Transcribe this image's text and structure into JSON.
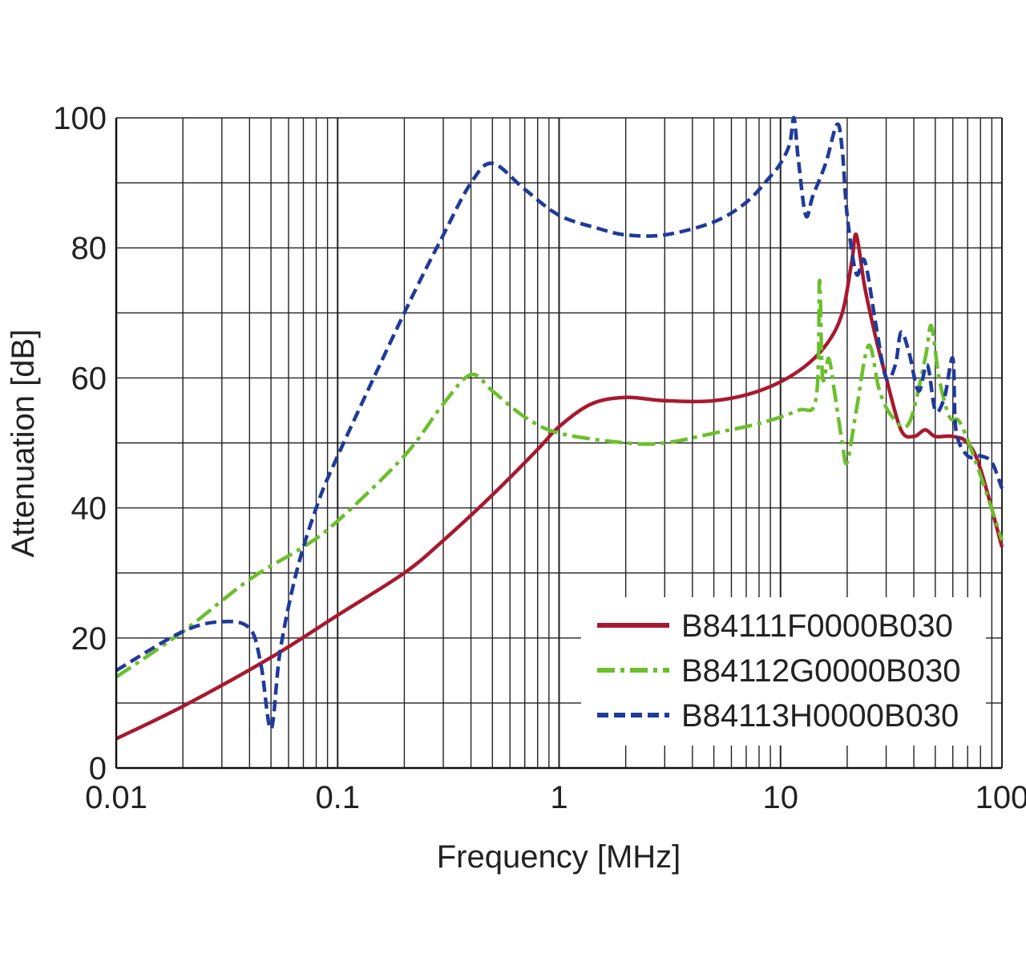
{
  "chart_data": {
    "type": "line",
    "xlabel": "Frequency [MHz]",
    "ylabel": "Attenuation [dB]",
    "x_scale": "log",
    "xlim": [
      0.01,
      100
    ],
    "ylim": [
      0,
      100
    ],
    "x_ticks": [
      "0.01",
      "0.1",
      "1",
      "10",
      "100"
    ],
    "y_ticks": [
      "0",
      "20",
      "40",
      "60",
      "80",
      "100"
    ],
    "grid": true,
    "legend_position": "bottom-right",
    "series": [
      {
        "name": "B84111F0000B030",
        "color": "#a8192e",
        "dash": "solid",
        "points": [
          [
            0.01,
            4.5
          ],
          [
            0.02,
            9.5
          ],
          [
            0.05,
            17
          ],
          [
            0.1,
            23.5
          ],
          [
            0.2,
            30
          ],
          [
            0.3,
            35
          ],
          [
            0.5,
            42
          ],
          [
            0.8,
            49
          ],
          [
            1.0,
            52.5
          ],
          [
            1.4,
            56
          ],
          [
            2.0,
            57
          ],
          [
            3.0,
            56.5
          ],
          [
            5.0,
            56.5
          ],
          [
            8.0,
            58
          ],
          [
            12.0,
            61
          ],
          [
            16.0,
            65
          ],
          [
            19.0,
            70
          ],
          [
            21.0,
            78
          ],
          [
            22.0,
            82
          ],
          [
            24.0,
            74
          ],
          [
            27.0,
            66
          ],
          [
            30.0,
            60
          ],
          [
            35.0,
            52
          ],
          [
            40.0,
            51
          ],
          [
            45.0,
            52
          ],
          [
            50.0,
            51
          ],
          [
            60.0,
            51
          ],
          [
            70.0,
            50
          ],
          [
            80.0,
            46
          ],
          [
            100.0,
            34
          ]
        ]
      },
      {
        "name": "B84112G0000B030",
        "color": "#6cbf2c",
        "dash": "dashdot",
        "points": [
          [
            0.01,
            14
          ],
          [
            0.02,
            21
          ],
          [
            0.04,
            29
          ],
          [
            0.07,
            34
          ],
          [
            0.1,
            38
          ],
          [
            0.2,
            48
          ],
          [
            0.3,
            56
          ],
          [
            0.4,
            60.5
          ],
          [
            0.5,
            58
          ],
          [
            0.7,
            54
          ],
          [
            1.0,
            51.5
          ],
          [
            2.0,
            50
          ],
          [
            3.0,
            50
          ],
          [
            5.0,
            51.5
          ],
          [
            8.0,
            53
          ],
          [
            12.0,
            55
          ],
          [
            14.5,
            57
          ],
          [
            15.0,
            75
          ],
          [
            15.5,
            60
          ],
          [
            16.5,
            63
          ],
          [
            17.5,
            58
          ],
          [
            19.0,
            50
          ],
          [
            20.0,
            47
          ],
          [
            22.0,
            55
          ],
          [
            25.0,
            65
          ],
          [
            28.0,
            58
          ],
          [
            32.0,
            54
          ],
          [
            38.0,
            53
          ],
          [
            45.0,
            63
          ],
          [
            48.0,
            68
          ],
          [
            52.0,
            60
          ],
          [
            58.0,
            54
          ],
          [
            65.0,
            53
          ],
          [
            80.0,
            45
          ],
          [
            100.0,
            35
          ]
        ]
      },
      {
        "name": "B84113H0000B030",
        "color": "#1f3a9a",
        "dash": "dashed",
        "points": [
          [
            0.01,
            15
          ],
          [
            0.02,
            21
          ],
          [
            0.03,
            22.5
          ],
          [
            0.04,
            21.5
          ],
          [
            0.045,
            16
          ],
          [
            0.05,
            6
          ],
          [
            0.055,
            18
          ],
          [
            0.065,
            30
          ],
          [
            0.08,
            40
          ],
          [
            0.1,
            48
          ],
          [
            0.2,
            70
          ],
          [
            0.3,
            82
          ],
          [
            0.4,
            90
          ],
          [
            0.5,
            93
          ],
          [
            0.7,
            89
          ],
          [
            1.0,
            85
          ],
          [
            1.5,
            83
          ],
          [
            2.0,
            82
          ],
          [
            3.0,
            82
          ],
          [
            5.0,
            84
          ],
          [
            7.0,
            87
          ],
          [
            9.0,
            91
          ],
          [
            10.0,
            93
          ],
          [
            11.0,
            96
          ],
          [
            11.5,
            100
          ],
          [
            12.0,
            94
          ],
          [
            13.0,
            85
          ],
          [
            14.0,
            88
          ],
          [
            16.0,
            93
          ],
          [
            18.0,
            99
          ],
          [
            19.0,
            95
          ],
          [
            20.0,
            85
          ],
          [
            22.0,
            76
          ],
          [
            24.0,
            78
          ],
          [
            27.0,
            68
          ],
          [
            30.0,
            60
          ],
          [
            33.0,
            62
          ],
          [
            35.0,
            67
          ],
          [
            38.0,
            64
          ],
          [
            42.0,
            58
          ],
          [
            46.0,
            62
          ],
          [
            50.0,
            55
          ],
          [
            55.0,
            57
          ],
          [
            60.0,
            63
          ],
          [
            62.0,
            52
          ],
          [
            70.0,
            48
          ],
          [
            80.0,
            48
          ],
          [
            90.0,
            47
          ],
          [
            100.0,
            43
          ]
        ]
      }
    ]
  }
}
